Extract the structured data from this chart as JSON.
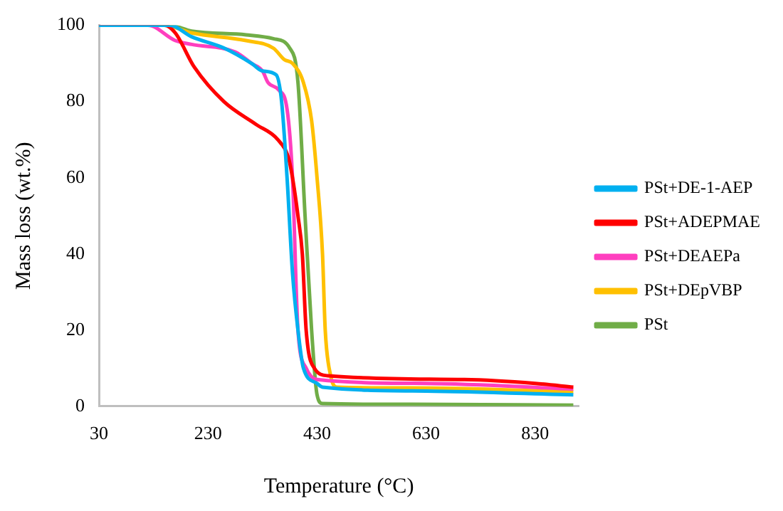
{
  "chart_data": {
    "type": "line",
    "xlabel": "Temperature (°C)",
    "ylabel": "Mass loss (wt.%)",
    "xlim": [
      30,
      910
    ],
    "xticks": [
      30,
      230,
      430,
      630,
      830
    ],
    "ylim": [
      0,
      100
    ],
    "yticks": [
      0,
      20,
      40,
      60,
      80,
      100
    ],
    "grid": false,
    "legend": "right",
    "marker": "none",
    "line_style": "solid",
    "series": [
      {
        "name": "PSt+DE-1-AEP",
        "color": "#00b0f0",
        "x": [
          30,
          160,
          200,
          260,
          310,
          330,
          355,
          365,
          375,
          385,
          395,
          405,
          430,
          440,
          630,
          900
        ],
        "values": [
          100,
          100,
          97,
          94,
          90,
          88,
          87,
          80,
          60,
          35,
          20,
          10,
          6,
          5,
          4,
          3
        ]
      },
      {
        "name": "PSt+ADEPMAE",
        "color": "#ff0000",
        "x": [
          30,
          150,
          170,
          205,
          259,
          318,
          358,
          378,
          385,
          395,
          403,
          410,
          425,
          450,
          700,
          830,
          900
        ],
        "values": [
          100,
          100,
          98,
          89,
          80,
          74,
          70,
          65,
          60,
          50,
          40,
          20,
          10,
          8,
          7,
          6,
          5
        ]
      },
      {
        "name": "PSt+DEAEPa",
        "color": "#ff3fbf",
        "x": [
          30,
          120,
          170,
          200,
          280,
          310,
          330,
          340,
          360,
          375,
          385,
          395,
          410,
          430,
          630,
          900
        ],
        "values": [
          100,
          100,
          96,
          95,
          93,
          90,
          88,
          85,
          83,
          78,
          60,
          20,
          10,
          7,
          6,
          4.5
        ]
      },
      {
        "name": "PSt+DEpVBP",
        "color": "#ffc000",
        "x": [
          30,
          150,
          200,
          300,
          350,
          370,
          385,
          405,
          420,
          430,
          440,
          445,
          455,
          466,
          600,
          900
        ],
        "values": [
          100,
          100,
          98,
          96,
          94,
          91,
          90,
          85,
          75,
          60,
          40,
          20,
          8,
          5,
          4.8,
          3.8
        ]
      },
      {
        "name": "PSt",
        "color": "#70ad47",
        "x": [
          30,
          160,
          200,
          300,
          350,
          380,
          395,
          408,
          420,
          430,
          440,
          600,
          900
        ],
        "values": [
          100,
          100,
          98.5,
          97.5,
          96.5,
          94,
          85,
          50,
          20,
          3,
          0.7,
          0.5,
          0.3
        ]
      }
    ]
  }
}
